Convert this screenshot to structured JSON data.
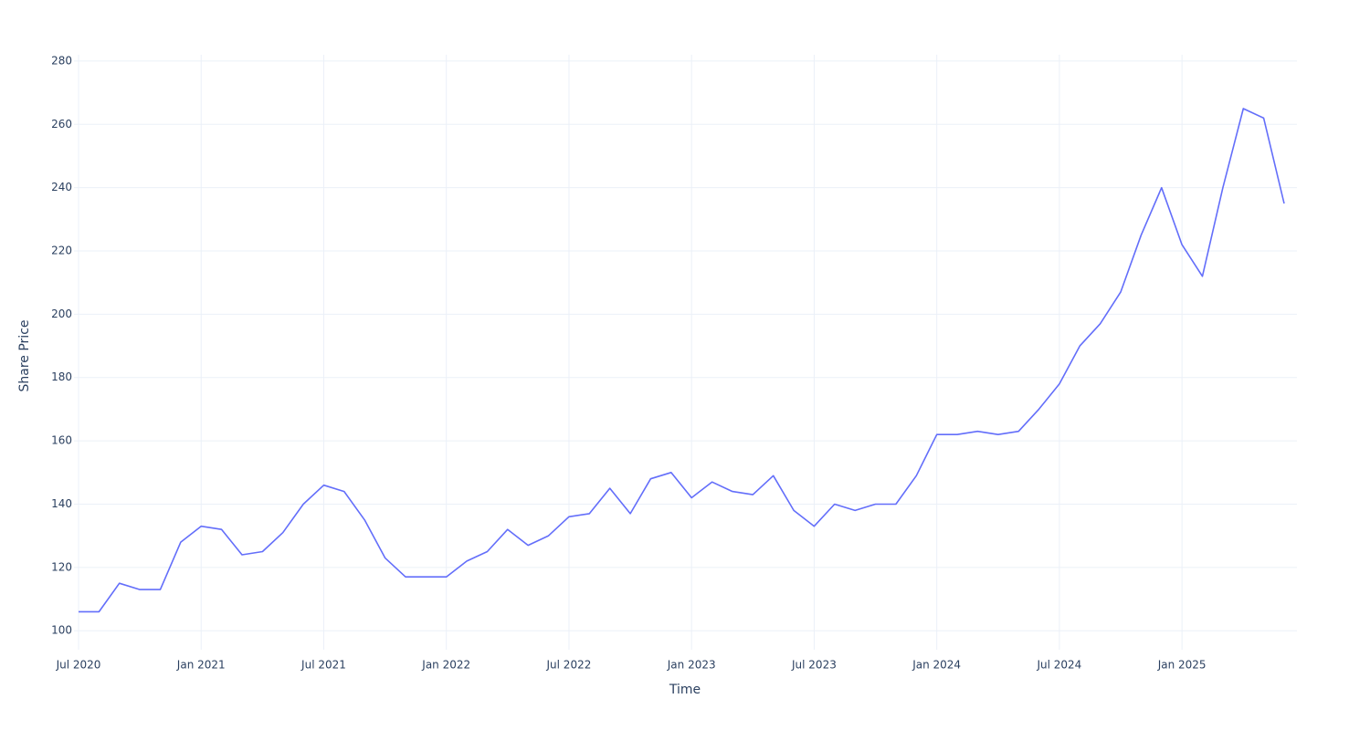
{
  "chart_data": {
    "type": "line",
    "x_label": "Time",
    "y_label": "Share Price",
    "x": [
      "2020-07",
      "2020-08",
      "2020-09",
      "2020-10",
      "2020-11",
      "2020-12",
      "2021-01",
      "2021-02",
      "2021-03",
      "2021-04",
      "2021-05",
      "2021-06",
      "2021-07",
      "2021-08",
      "2021-09",
      "2021-10",
      "2021-11",
      "2021-12",
      "2022-01",
      "2022-02",
      "2022-03",
      "2022-04",
      "2022-05",
      "2022-06",
      "2022-07",
      "2022-08",
      "2022-09",
      "2022-10",
      "2022-11",
      "2022-12",
      "2023-01",
      "2023-02",
      "2023-03",
      "2023-04",
      "2023-05",
      "2023-06",
      "2023-07",
      "2023-08",
      "2023-09",
      "2023-10",
      "2023-11",
      "2023-12",
      "2024-01",
      "2024-02",
      "2024-03",
      "2024-04",
      "2024-05",
      "2024-06",
      "2024-07",
      "2024-08",
      "2024-09",
      "2024-10",
      "2024-11",
      "2024-12",
      "2025-01",
      "2025-02",
      "2025-03",
      "2025-04",
      "2025-05",
      "2025-06"
    ],
    "series": [
      {
        "name": "Share Price",
        "color": "#636efa",
        "values": [
          106,
          106,
          115,
          113,
          113,
          128,
          133,
          132,
          124,
          125,
          131,
          140,
          146,
          144,
          135,
          123,
          117,
          117,
          117,
          122,
          125,
          132,
          127,
          130,
          136,
          137,
          145,
          137,
          148,
          150,
          142,
          147,
          144,
          143,
          149,
          138,
          133,
          140,
          138,
          140,
          140,
          149,
          162,
          162,
          163,
          162,
          163,
          170,
          178,
          190,
          197,
          207,
          225,
          240,
          222,
          212,
          240,
          265,
          262,
          235
        ]
      }
    ],
    "xlim": [
      "2020-07",
      "2025-06"
    ],
    "xticks": [
      {
        "value": "2020-07",
        "label": "Jul 2020"
      },
      {
        "value": "2021-01",
        "label": "Jan 2021"
      },
      {
        "value": "2021-07",
        "label": "Jul 2021"
      },
      {
        "value": "2022-01",
        "label": "Jan 2022"
      },
      {
        "value": "2022-07",
        "label": "Jul 2022"
      },
      {
        "value": "2023-01",
        "label": "Jan 2023"
      },
      {
        "value": "2023-07",
        "label": "Jul 2023"
      },
      {
        "value": "2024-01",
        "label": "Jan 2024"
      },
      {
        "value": "2024-07",
        "label": "Jul 2024"
      },
      {
        "value": "2025-01",
        "label": "Jan 2025"
      }
    ],
    "ylim": [
      94,
      282
    ],
    "yticks": [
      100,
      120,
      140,
      160,
      180,
      200,
      220,
      240,
      260,
      280
    ],
    "grid": true
  }
}
